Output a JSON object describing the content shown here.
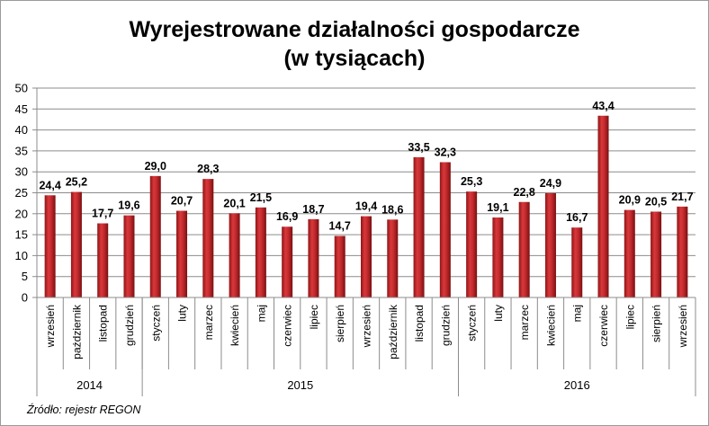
{
  "chart_data": {
    "type": "bar",
    "title_line1": "Wyrejestrowane działalności gospodarcze",
    "title_line2": "(w tysiącach)",
    "source": "Źródło: rejestr REGON",
    "ylim": [
      0,
      50
    ],
    "yticks": [
      0,
      5,
      10,
      15,
      20,
      25,
      30,
      35,
      40,
      45,
      50
    ],
    "grid": true,
    "bar_color": "#c0282b",
    "groups": [
      {
        "year": "2014",
        "count": 4
      },
      {
        "year": "2015",
        "count": 12
      },
      {
        "year": "2016",
        "count": 9
      }
    ],
    "categories": [
      "wrzesień",
      "październik",
      "listopad",
      "grudzień",
      "styczeń",
      "luty",
      "marzec",
      "kwiecień",
      "maj",
      "czerwiec",
      "lipiec",
      "sierpień",
      "wrzesień",
      "październik",
      "listopad",
      "grudzień",
      "styczeń",
      "luty",
      "marzec",
      "kwiecień",
      "maj",
      "czerwiec",
      "lipiec",
      "sierpień",
      "wrzesień"
    ],
    "values": [
      24.4,
      25.2,
      17.7,
      19.6,
      29.0,
      20.7,
      28.3,
      20.1,
      21.5,
      16.9,
      18.7,
      14.7,
      19.4,
      18.6,
      33.5,
      32.3,
      25.3,
      19.1,
      22.8,
      24.9,
      16.7,
      43.4,
      20.9,
      20.5,
      21.7
    ],
    "value_labels": [
      "24,4",
      "25,2",
      "17,7",
      "19,6",
      "29,0",
      "20,7",
      "28,3",
      "20,1",
      "21,5",
      "16,9",
      "18,7",
      "14,7",
      "19,4",
      "18,6",
      "33,5",
      "32,3",
      "25,3",
      "19,1",
      "22,8",
      "24,9",
      "16,7",
      "43,4",
      "20,9",
      "20,5",
      "21,7"
    ]
  }
}
